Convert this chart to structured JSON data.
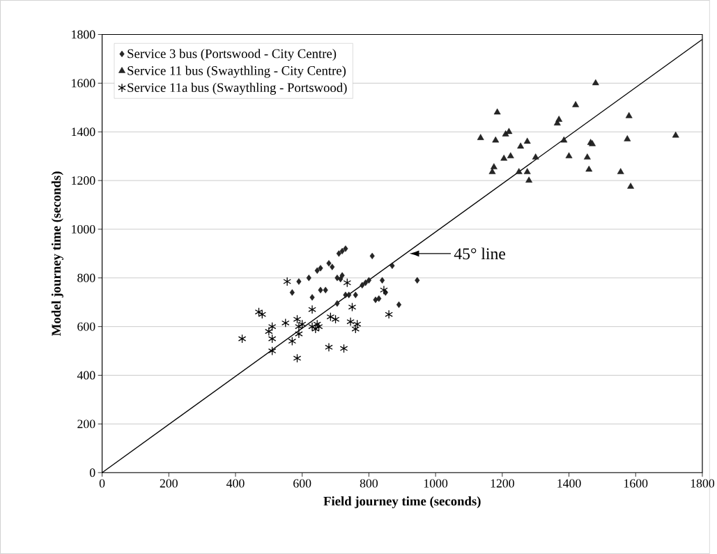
{
  "chart_data": {
    "type": "scatter",
    "xlabel": "Field journey time (seconds)",
    "ylabel": "Model journey time (seconds)",
    "xlim": [
      0,
      1800
    ],
    "ylim": [
      0,
      1800
    ],
    "xticks": [
      0,
      200,
      400,
      600,
      800,
      1000,
      1200,
      1400,
      1600,
      1800
    ],
    "yticks": [
      0,
      200,
      400,
      600,
      800,
      1000,
      1200,
      1400,
      1600,
      1800
    ],
    "grid": "y",
    "legend": "top left",
    "series": [
      {
        "name": "Service 3 bus (Portswood - City Centre)",
        "color": "#000000",
        "marker": "diamond",
        "x": [
          570,
          590,
          620,
          630,
          645,
          655,
          655,
          670,
          680,
          690,
          705,
          710,
          720,
          730,
          715,
          720,
          730,
          740,
          760,
          780,
          790,
          800,
          810,
          820,
          830,
          840,
          850,
          870,
          890,
          945,
          705
        ],
        "values": [
          740,
          785,
          800,
          720,
          830,
          840,
          750,
          750,
          860,
          845,
          800,
          900,
          910,
          920,
          795,
          810,
          730,
          730,
          730,
          770,
          780,
          790,
          890,
          710,
          715,
          790,
          740,
          850,
          690,
          790,
          695
        ]
      },
      {
        "name": "Service 11 bus (Swaythling - City Centre)",
        "color": "#000000",
        "marker": "triangle",
        "x": [
          1135,
          1170,
          1175,
          1180,
          1185,
          1205,
          1210,
          1220,
          1225,
          1250,
          1255,
          1275,
          1275,
          1280,
          1300,
          1365,
          1370,
          1385,
          1400,
          1420,
          1455,
          1460,
          1465,
          1470,
          1480,
          1555,
          1575,
          1580,
          1585,
          1720
        ],
        "values": [
          1375,
          1235,
          1255,
          1365,
          1480,
          1290,
          1390,
          1400,
          1300,
          1235,
          1340,
          1360,
          1235,
          1200,
          1295,
          1435,
          1450,
          1365,
          1300,
          1510,
          1295,
          1245,
          1355,
          1350,
          1600,
          1235,
          1370,
          1465,
          1175,
          1385
        ]
      },
      {
        "name": "Service 11a bus (Swaythling - Portswood)",
        "color": "#000000",
        "marker": "cross",
        "x": [
          420,
          470,
          480,
          500,
          510,
          510,
          510,
          550,
          555,
          570,
          585,
          585,
          590,
          590,
          600,
          630,
          630,
          640,
          645,
          650,
          680,
          685,
          700,
          725,
          735,
          745,
          750,
          760,
          765,
          845,
          860
        ],
        "values": [
          550,
          660,
          650,
          580,
          600,
          500,
          550,
          615,
          785,
          540,
          470,
          630,
          600,
          570,
          610,
          670,
          600,
          590,
          610,
          600,
          515,
          640,
          630,
          510,
          780,
          620,
          680,
          590,
          610,
          750,
          650
        ]
      },
      {
        "type": "line",
        "color": "#000000",
        "marker": "none",
        "line_style": "solid",
        "x": [
          0,
          1800
        ],
        "values": [
          0,
          1780
        ]
      }
    ],
    "annotations": [
      {
        "text": "45° line",
        "x": 920,
        "y": 900
      }
    ]
  }
}
